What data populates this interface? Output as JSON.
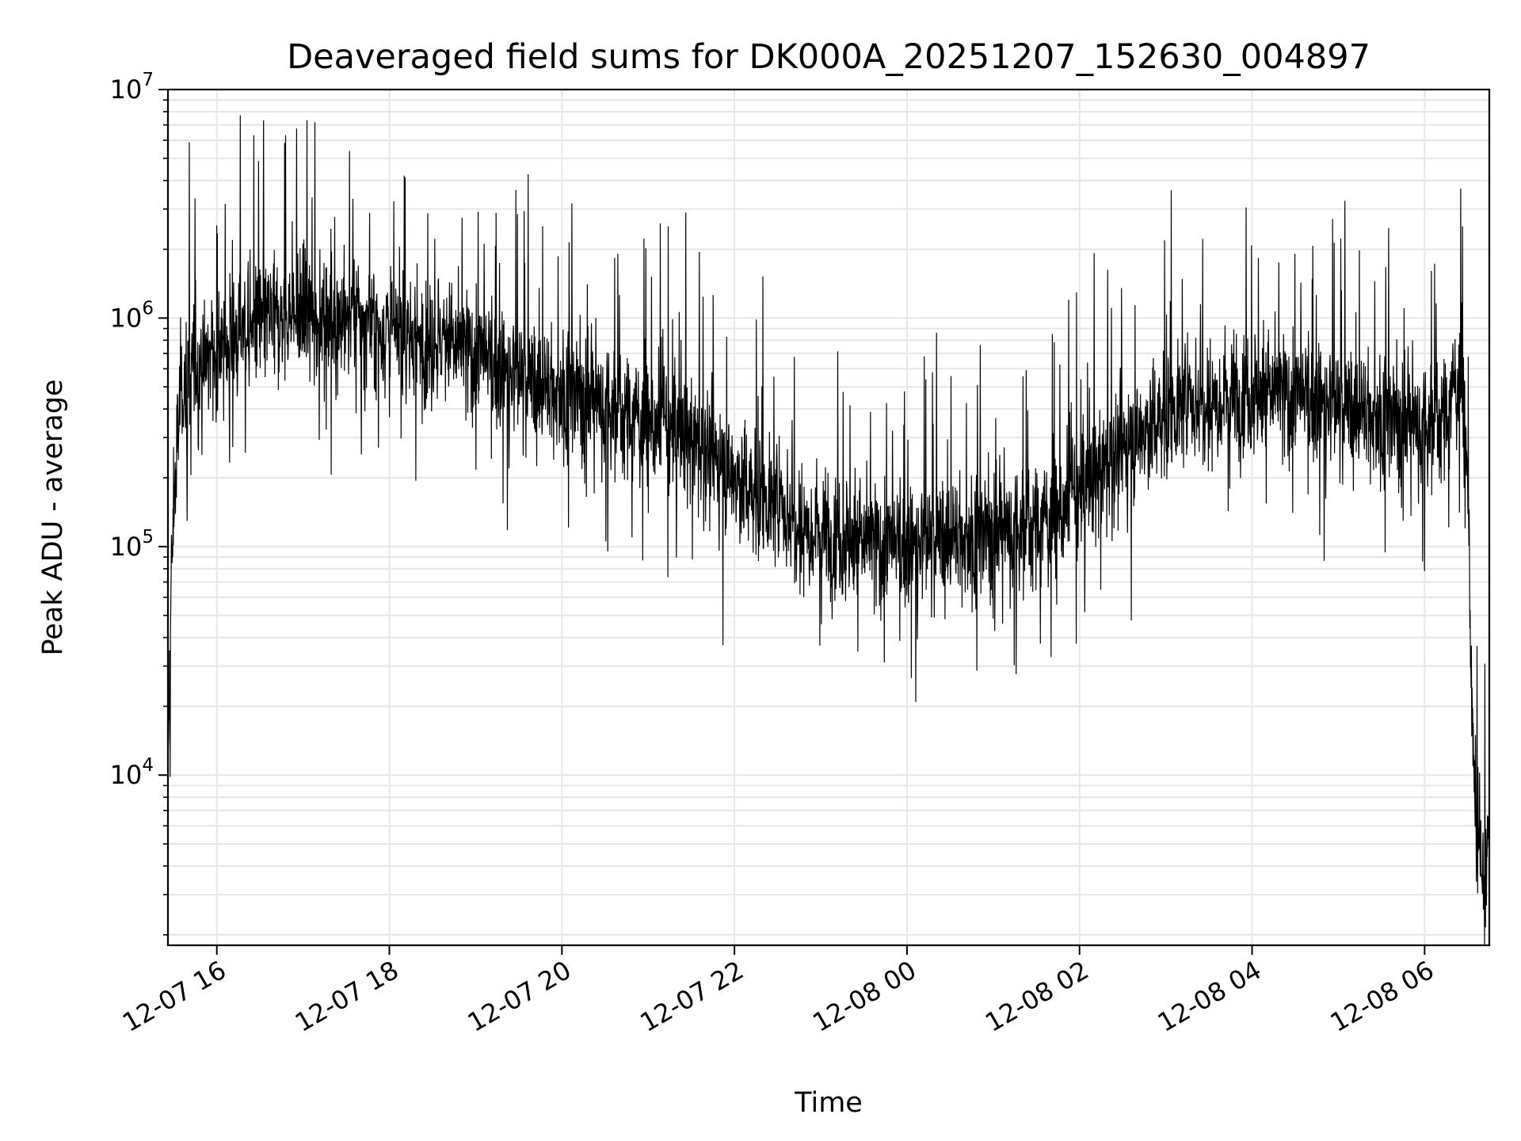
{
  "chart_data": {
    "type": "line",
    "title": "Deaveraged field sums for DK000A_20251207_152630_004897",
    "xlabel": "Time",
    "ylabel": "Peak ADU - average",
    "yscale": "log",
    "ylim": [
      1800,
      10000000
    ],
    "xlim": [
      "2025-12-07T15:26",
      "2025-12-08T06:45"
    ],
    "grid": true,
    "line_color": "#000000",
    "grid_color": "#e6e6e6",
    "x_ticks": [
      {
        "value": "2025-12-07T16:00",
        "label": "12-07 16"
      },
      {
        "value": "2025-12-07T18:00",
        "label": "12-07 18"
      },
      {
        "value": "2025-12-07T20:00",
        "label": "12-07 20"
      },
      {
        "value": "2025-12-07T22:00",
        "label": "12-07 22"
      },
      {
        "value": "2025-12-08T00:00",
        "label": "12-08 00"
      },
      {
        "value": "2025-12-08T02:00",
        "label": "12-08 02"
      },
      {
        "value": "2025-12-08T04:00",
        "label": "12-08 04"
      },
      {
        "value": "2025-12-08T06:00",
        "label": "12-08 06"
      }
    ],
    "y_ticks": [
      {
        "value": 10000,
        "base": "10",
        "exp": "4"
      },
      {
        "value": 100000,
        "base": "10",
        "exp": "5"
      },
      {
        "value": 1000000,
        "base": "10",
        "exp": "6"
      },
      {
        "value": 10000000,
        "base": "10",
        "exp": "7"
      }
    ],
    "series": [
      {
        "values": [
          [
            "2025-12-07T15:26",
            8000
          ],
          [
            "2025-12-07T15:28",
            60000
          ],
          [
            "2025-12-07T15:30",
            150000
          ],
          [
            "2025-12-07T15:35",
            500000
          ],
          [
            "2025-12-07T15:45",
            600000
          ],
          [
            "2025-12-07T16:00",
            700000
          ],
          [
            "2025-12-07T16:15",
            850000
          ],
          [
            "2025-12-07T16:30",
            950000
          ],
          [
            "2025-12-07T16:45",
            1000000
          ],
          [
            "2025-12-07T17:00",
            1000000
          ],
          [
            "2025-12-07T17:15",
            1050000
          ],
          [
            "2025-12-07T17:30",
            1000000
          ],
          [
            "2025-12-07T17:45",
            950000
          ],
          [
            "2025-12-07T18:00",
            850000
          ],
          [
            "2025-12-07T18:15",
            800000
          ],
          [
            "2025-12-07T18:30",
            800000
          ],
          [
            "2025-12-07T18:45",
            750000
          ],
          [
            "2025-12-07T19:00",
            700000
          ],
          [
            "2025-12-07T19:15",
            600000
          ],
          [
            "2025-12-07T19:30",
            550000
          ],
          [
            "2025-12-07T19:45",
            500000
          ],
          [
            "2025-12-07T20:00",
            480000
          ],
          [
            "2025-12-07T20:15",
            450000
          ],
          [
            "2025-12-07T20:30",
            420000
          ],
          [
            "2025-12-07T20:45",
            380000
          ],
          [
            "2025-12-07T21:00",
            350000
          ],
          [
            "2025-12-07T21:15",
            320000
          ],
          [
            "2025-12-07T21:30",
            300000
          ],
          [
            "2025-12-07T21:45",
            250000
          ],
          [
            "2025-12-07T22:00",
            200000
          ],
          [
            "2025-12-07T22:15",
            170000
          ],
          [
            "2025-12-07T22:30",
            150000
          ],
          [
            "2025-12-07T22:45",
            130000
          ],
          [
            "2025-12-07T23:00",
            120000
          ],
          [
            "2025-12-07T23:15",
            110000
          ],
          [
            "2025-12-07T23:30",
            105000
          ],
          [
            "2025-12-07T23:45",
            100000
          ],
          [
            "2025-12-08T00:00",
            100000
          ],
          [
            "2025-12-08T00:15",
            105000
          ],
          [
            "2025-12-08T00:30",
            110000
          ],
          [
            "2025-12-08T00:45",
            110000
          ],
          [
            "2025-12-08T01:00",
            115000
          ],
          [
            "2025-12-08T01:15",
            120000
          ],
          [
            "2025-12-08T01:30",
            125000
          ],
          [
            "2025-12-08T01:45",
            140000
          ],
          [
            "2025-12-08T02:00",
            170000
          ],
          [
            "2025-12-08T02:15",
            220000
          ],
          [
            "2025-12-08T02:30",
            270000
          ],
          [
            "2025-12-08T02:45",
            320000
          ],
          [
            "2025-12-08T03:00",
            380000
          ],
          [
            "2025-12-08T03:15",
            420000
          ],
          [
            "2025-12-08T03:30",
            450000
          ],
          [
            "2025-12-08T03:45",
            470000
          ],
          [
            "2025-12-08T04:00",
            480000
          ],
          [
            "2025-12-08T04:15",
            470000
          ],
          [
            "2025-12-08T04:30",
            450000
          ],
          [
            "2025-12-08T04:45",
            430000
          ],
          [
            "2025-12-08T05:00",
            410000
          ],
          [
            "2025-12-08T05:15",
            390000
          ],
          [
            "2025-12-08T05:30",
            370000
          ],
          [
            "2025-12-08T05:45",
            350000
          ],
          [
            "2025-12-08T06:00",
            340000
          ],
          [
            "2025-12-08T06:15",
            380000
          ],
          [
            "2025-12-08T06:25",
            600000
          ],
          [
            "2025-12-08T06:30",
            200000
          ],
          [
            "2025-12-08T06:33",
            20000
          ],
          [
            "2025-12-08T06:36",
            5000
          ],
          [
            "2025-12-08T06:40",
            3000
          ],
          [
            "2025-12-08T06:45",
            6000
          ]
        ]
      }
    ]
  }
}
